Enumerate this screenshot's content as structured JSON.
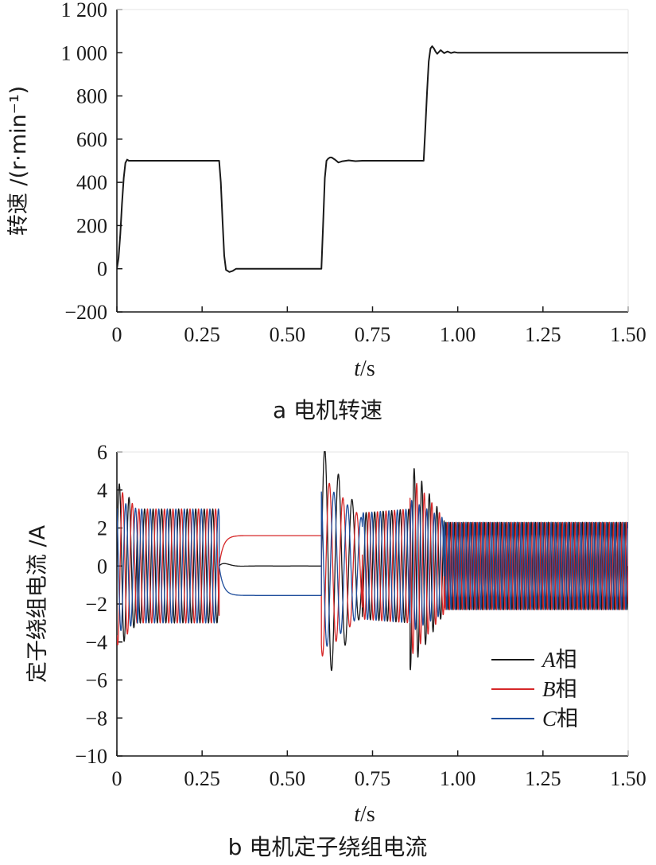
{
  "chart_data": [
    {
      "type": "line",
      "caption": "a 电机转速",
      "xlabel_var": "t",
      "xlabel_unit": "/s",
      "ylabel": "转速 /(r·min⁻¹)",
      "xlim": [
        0,
        1.5
      ],
      "ylim": [
        -200,
        1200
      ],
      "xticks": [
        "0",
        "0.25",
        "0.50",
        "0.75",
        "1.00",
        "1.25",
        "1.50"
      ],
      "yticks": [
        "−200",
        "0",
        "200",
        "400",
        "600",
        "800",
        "1 000",
        "1 200"
      ],
      "series": [
        {
          "color": "#1a1a1a",
          "x": [
            0,
            0.005,
            0.01,
            0.015,
            0.02,
            0.025,
            0.03,
            0.035,
            0.3,
            0.305,
            0.31,
            0.315,
            0.32,
            0.33,
            0.34,
            0.35,
            0.6,
            0.605,
            0.61,
            0.615,
            0.62,
            0.625,
            0.63,
            0.64,
            0.65,
            0.66,
            0.68,
            0.7,
            0.72,
            0.9,
            0.905,
            0.91,
            0.915,
            0.92,
            0.925,
            0.93,
            0.935,
            0.94,
            0.95,
            0.96,
            0.97,
            0.98,
            0.99,
            1.0,
            1.02,
            1.5
          ],
          "y": [
            0,
            50,
            160,
            300,
            420,
            490,
            505,
            500,
            500,
            400,
            220,
            60,
            -5,
            -15,
            -10,
            0,
            0,
            200,
            420,
            500,
            510,
            515,
            515,
            505,
            492,
            497,
            502,
            498,
            500,
            500,
            650,
            820,
            960,
            1020,
            1030,
            1020,
            1005,
            995,
            1012,
            998,
            1006,
            999,
            1003,
            1000,
            1000,
            1000
          ]
        }
      ]
    },
    {
      "type": "line",
      "caption": "b 电机定子绕组电流",
      "xlabel_var": "t",
      "xlabel_unit": "/s",
      "ylabel": "定子绕组电流 /A",
      "xlim": [
        0,
        1.5
      ],
      "ylim": [
        -10,
        6
      ],
      "xticks": [
        "0",
        "0.25",
        "0.50",
        "0.75",
        "1.00",
        "1.25",
        "1.50"
      ],
      "yticks": [
        "−10",
        "−8",
        "−6",
        "−4",
        "−2",
        "0",
        "2",
        "4",
        "6"
      ],
      "legend_position": "lower-right",
      "series": [
        {
          "name_var": "A",
          "name_suffix": "相",
          "color": "#1a1a1a",
          "phase_deg": 0,
          "segments": [
            {
              "t0": 0,
              "t1": 0.06,
              "f": 35,
              "amp": [
                4.5,
                3.0
              ],
              "off": 0
            },
            {
              "t0": 0.06,
              "t1": 0.3,
              "f": 40,
              "amp": [
                3.0,
                3.0
              ],
              "off": 0
            },
            {
              "t0": 0.3,
              "t1": 0.6,
              "f": 0,
              "amp": [
                0,
                0
              ],
              "off": 0
            },
            {
              "t0": 0.6,
              "t1": 0.72,
              "f": 25,
              "amp": [
                6.5,
                2.5
              ],
              "off": 0
            },
            {
              "t0": 0.72,
              "t1": 0.86,
              "f": 40,
              "amp": [
                2.8,
                3.0
              ],
              "off": 0
            },
            {
              "t0": 0.86,
              "t1": 0.96,
              "f": 45,
              "amp": [
                5.5,
                2.5
              ],
              "off": 0
            },
            {
              "t0": 0.96,
              "t1": 1.5,
              "f": 80,
              "amp": [
                2.3,
                2.3
              ],
              "off": 0
            }
          ]
        },
        {
          "name_var": "B",
          "name_suffix": "相",
          "color": "#d62728",
          "phase_deg": 120,
          "segments": [
            {
              "t0": 0,
              "t1": 0.06,
              "f": 35,
              "amp": [
                4.2,
                3.0
              ],
              "off": 0
            },
            {
              "t0": 0.06,
              "t1": 0.3,
              "f": 40,
              "amp": [
                3.0,
                3.0
              ],
              "off": 0
            },
            {
              "t0": 0.3,
              "t1": 0.6,
              "f": 0,
              "amp": [
                0,
                0
              ],
              "off": 1.6
            },
            {
              "t0": 0.6,
              "t1": 0.72,
              "f": 25,
              "amp": [
                4.8,
                2.5
              ],
              "off": 0
            },
            {
              "t0": 0.72,
              "t1": 0.86,
              "f": 40,
              "amp": [
                2.8,
                3.0
              ],
              "off": 0
            },
            {
              "t0": 0.86,
              "t1": 0.96,
              "f": 45,
              "amp": [
                4.8,
                2.5
              ],
              "off": 0
            },
            {
              "t0": 0.96,
              "t1": 1.5,
              "f": 80,
              "amp": [
                2.3,
                2.3
              ],
              "off": 0
            }
          ]
        },
        {
          "name_var": "C",
          "name_suffix": "相",
          "color": "#1f4e9c",
          "phase_deg": 240,
          "segments": [
            {
              "t0": 0,
              "t1": 0.06,
              "f": 35,
              "amp": [
                3.5,
                3.0
              ],
              "off": 0
            },
            {
              "t0": 0.06,
              "t1": 0.3,
              "f": 40,
              "amp": [
                3.0,
                3.0
              ],
              "off": 0
            },
            {
              "t0": 0.3,
              "t1": 0.6,
              "f": 0,
              "amp": [
                0,
                0
              ],
              "off": -1.55
            },
            {
              "t0": 0.6,
              "t1": 0.72,
              "f": 25,
              "amp": [
                4.5,
                2.5
              ],
              "off": 0
            },
            {
              "t0": 0.72,
              "t1": 0.86,
              "f": 40,
              "amp": [
                2.8,
                3.0
              ],
              "off": 0
            },
            {
              "t0": 0.86,
              "t1": 0.96,
              "f": 45,
              "amp": [
                3.5,
                2.5
              ],
              "off": 0
            },
            {
              "t0": 0.96,
              "t1": 1.5,
              "f": 80,
              "amp": [
                2.3,
                2.3
              ],
              "off": 0
            }
          ]
        }
      ]
    }
  ]
}
